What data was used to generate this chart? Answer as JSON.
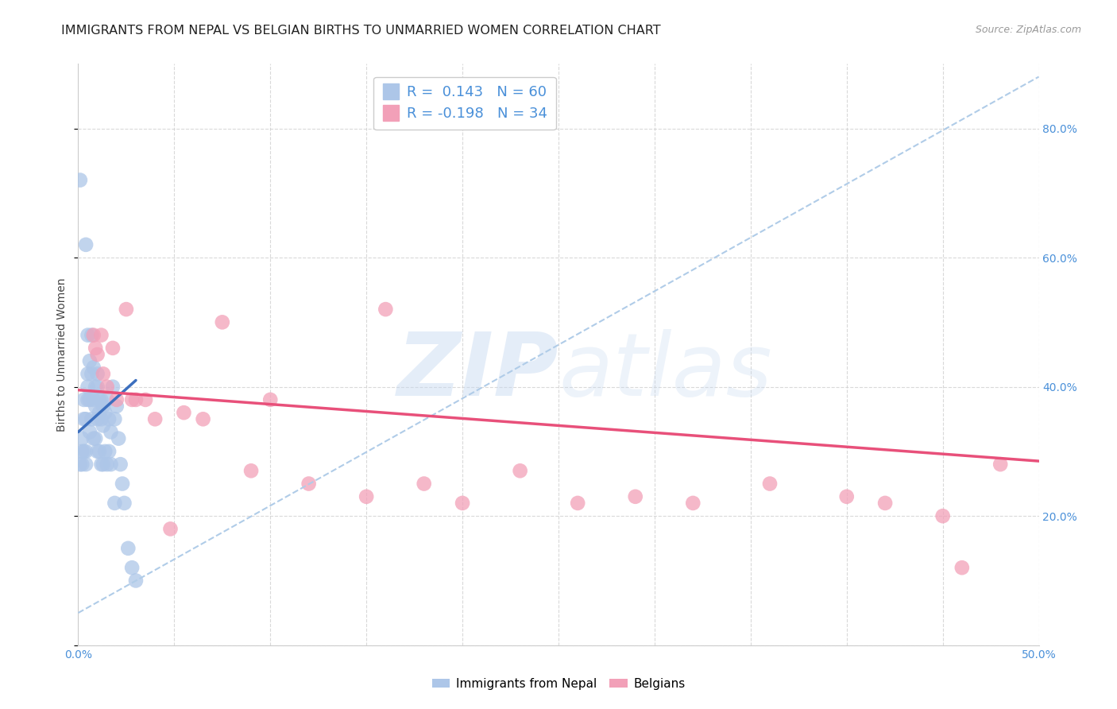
{
  "title": "IMMIGRANTS FROM NEPAL VS BELGIAN BIRTHS TO UNMARRIED WOMEN CORRELATION CHART",
  "source": "Source: ZipAtlas.com",
  "ylabel": "Births to Unmarried Women",
  "xlim": [
    0.0,
    0.5
  ],
  "ylim": [
    0.0,
    0.9
  ],
  "nepal_R": 0.143,
  "nepal_N": 60,
  "belgian_R": -0.198,
  "belgian_N": 34,
  "nepal_color": "#adc6e8",
  "belgian_color": "#f2a0b8",
  "nepal_line_color": "#3c6fbe",
  "belgian_line_color": "#e8507a",
  "dashed_line_color": "#b0cce8",
  "background_color": "#ffffff",
  "grid_color": "#d0d0d0",
  "tick_color": "#4a90d9",
  "title_fontsize": 11.5,
  "axis_label_fontsize": 10,
  "tick_fontsize": 10,
  "legend_fontsize": 13,
  "nepal_x": [
    0.001,
    0.001,
    0.002,
    0.002,
    0.002,
    0.003,
    0.003,
    0.003,
    0.004,
    0.004,
    0.004,
    0.004,
    0.005,
    0.005,
    0.005,
    0.005,
    0.006,
    0.006,
    0.006,
    0.007,
    0.007,
    0.007,
    0.008,
    0.008,
    0.008,
    0.009,
    0.009,
    0.009,
    0.01,
    0.01,
    0.01,
    0.01,
    0.011,
    0.011,
    0.011,
    0.012,
    0.012,
    0.012,
    0.013,
    0.013,
    0.013,
    0.014,
    0.014,
    0.015,
    0.015,
    0.016,
    0.016,
    0.017,
    0.017,
    0.018,
    0.019,
    0.019,
    0.02,
    0.021,
    0.022,
    0.023,
    0.024,
    0.026,
    0.028,
    0.03
  ],
  "nepal_y": [
    0.72,
    0.28,
    0.32,
    0.3,
    0.28,
    0.38,
    0.35,
    0.3,
    0.62,
    0.35,
    0.3,
    0.28,
    0.48,
    0.42,
    0.4,
    0.38,
    0.44,
    0.38,
    0.33,
    0.48,
    0.42,
    0.35,
    0.43,
    0.38,
    0.32,
    0.4,
    0.37,
    0.32,
    0.42,
    0.4,
    0.35,
    0.3,
    0.38,
    0.36,
    0.3,
    0.38,
    0.35,
    0.28,
    0.37,
    0.34,
    0.28,
    0.36,
    0.3,
    0.38,
    0.28,
    0.35,
    0.3,
    0.33,
    0.28,
    0.4,
    0.35,
    0.22,
    0.37,
    0.32,
    0.28,
    0.25,
    0.22,
    0.15,
    0.12,
    0.1
  ],
  "belgian_x": [
    0.008,
    0.009,
    0.01,
    0.012,
    0.013,
    0.015,
    0.018,
    0.02,
    0.025,
    0.028,
    0.03,
    0.035,
    0.04,
    0.048,
    0.055,
    0.065,
    0.075,
    0.09,
    0.1,
    0.12,
    0.15,
    0.16,
    0.18,
    0.2,
    0.23,
    0.26,
    0.29,
    0.32,
    0.36,
    0.4,
    0.42,
    0.45,
    0.46,
    0.48
  ],
  "belgian_y": [
    0.48,
    0.46,
    0.45,
    0.48,
    0.42,
    0.4,
    0.46,
    0.38,
    0.52,
    0.38,
    0.38,
    0.38,
    0.35,
    0.18,
    0.36,
    0.35,
    0.5,
    0.27,
    0.38,
    0.25,
    0.23,
    0.52,
    0.25,
    0.22,
    0.27,
    0.22,
    0.23,
    0.22,
    0.25,
    0.23,
    0.22,
    0.2,
    0.12,
    0.28
  ],
  "nepal_line_x": [
    0.0,
    0.03
  ],
  "nepal_line_y": [
    0.33,
    0.41
  ],
  "belgian_line_x": [
    0.0,
    0.5
  ],
  "belgian_line_y": [
    0.395,
    0.285
  ],
  "dashed_line_x": [
    0.0,
    0.5
  ],
  "dashed_line_y": [
    0.05,
    0.88
  ]
}
